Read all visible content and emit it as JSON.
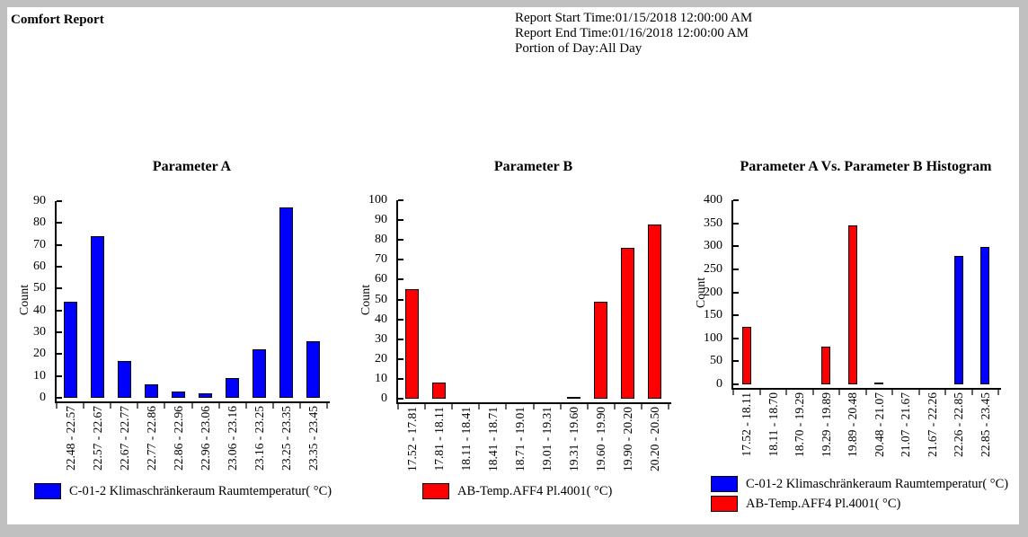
{
  "header": {
    "title": "Comfort Report",
    "report_info": [
      "Report Start Time:01/15/2018 12:00:00 AM",
      "Report End Time:01/16/2018 12:00:00 AM",
      "Portion of Day:All Day"
    ]
  },
  "colors": {
    "series_blue": "#0000ff",
    "series_red": "#ff0000",
    "axis": "#000000",
    "page_background": "#ffffff",
    "frame": "#c0c0c0"
  },
  "chart_data": [
    {
      "type": "bar",
      "title": "Parameter A",
      "xlabel": "",
      "ylabel": "Count",
      "ylim": [
        0,
        90
      ],
      "ytick_step": 10,
      "grid": false,
      "legend_position": "bottom",
      "categories": [
        "22.48 - 22.57",
        "22.57 - 22.67",
        "22.67 - 22.77",
        "22.77 - 22.86",
        "22.86 - 22.96",
        "22.96 - 23.06",
        "23.06 - 23.16",
        "23.16 - 23.25",
        "23.25 - 23.35",
        "23.35 - 23.45"
      ],
      "values": [
        44,
        74,
        17,
        6,
        3,
        2,
        9,
        22,
        87,
        26
      ],
      "bar_color": "#0000ff",
      "legend": [
        {
          "label": "C-01-2 Klimaschränkeraum Raumtemperatur( °C)",
          "color": "#0000ff"
        }
      ]
    },
    {
      "type": "bar",
      "title": "Parameter B",
      "xlabel": "",
      "ylabel": "Count",
      "ylim": [
        0,
        100
      ],
      "ytick_step": 10,
      "grid": false,
      "legend_position": "bottom",
      "categories": [
        "17.52 - 17.81",
        "17.81 - 18.11",
        "18.11 - 18.41",
        "18.41 - 18.71",
        "18.71 - 19.01",
        "19.01 - 19.31",
        "19.31 - 19.60",
        "19.60 - 19.90",
        "19.90 - 20.20",
        "20.20 - 20.50"
      ],
      "values": [
        55,
        8,
        0,
        0,
        0,
        0,
        1,
        49,
        76,
        88
      ],
      "bar_color": "#ff0000",
      "legend": [
        {
          "label": "AB-Temp.AFF4 Pl.4001( °C)",
          "color": "#ff0000"
        }
      ]
    },
    {
      "type": "bar",
      "title": "Parameter A Vs. Parameter B Histogram",
      "xlabel": "",
      "ylabel": "Count",
      "ylim": [
        0,
        400
      ],
      "ytick_step": 50,
      "grid": false,
      "legend_position": "bottom",
      "categories": [
        "17.52 - 18.11",
        "18.11 - 18.70",
        "18.70 - 19.29",
        "19.29 - 19.89",
        "19.89 - 20.48",
        "20.48 - 21.07",
        "21.07 - 21.67",
        "21.67 - 22.26",
        "22.26 - 22.85",
        "22.85 - 23.45"
      ],
      "values": [
        125,
        0,
        0,
        82,
        345,
        4,
        0,
        0,
        280,
        298
      ],
      "bar_colors": [
        "#ff0000",
        "#ff0000",
        "#ff0000",
        "#ff0000",
        "#ff0000",
        "#ff0000",
        "#ff0000",
        "#ff0000",
        "#0000ff",
        "#0000ff"
      ],
      "legend": [
        {
          "label": "C-01-2 Klimaschränkeraum Raumtemperatur( °C)",
          "color": "#0000ff"
        },
        {
          "label": "AB-Temp.AFF4 Pl.4001( °C)",
          "color": "#ff0000"
        }
      ]
    }
  ]
}
